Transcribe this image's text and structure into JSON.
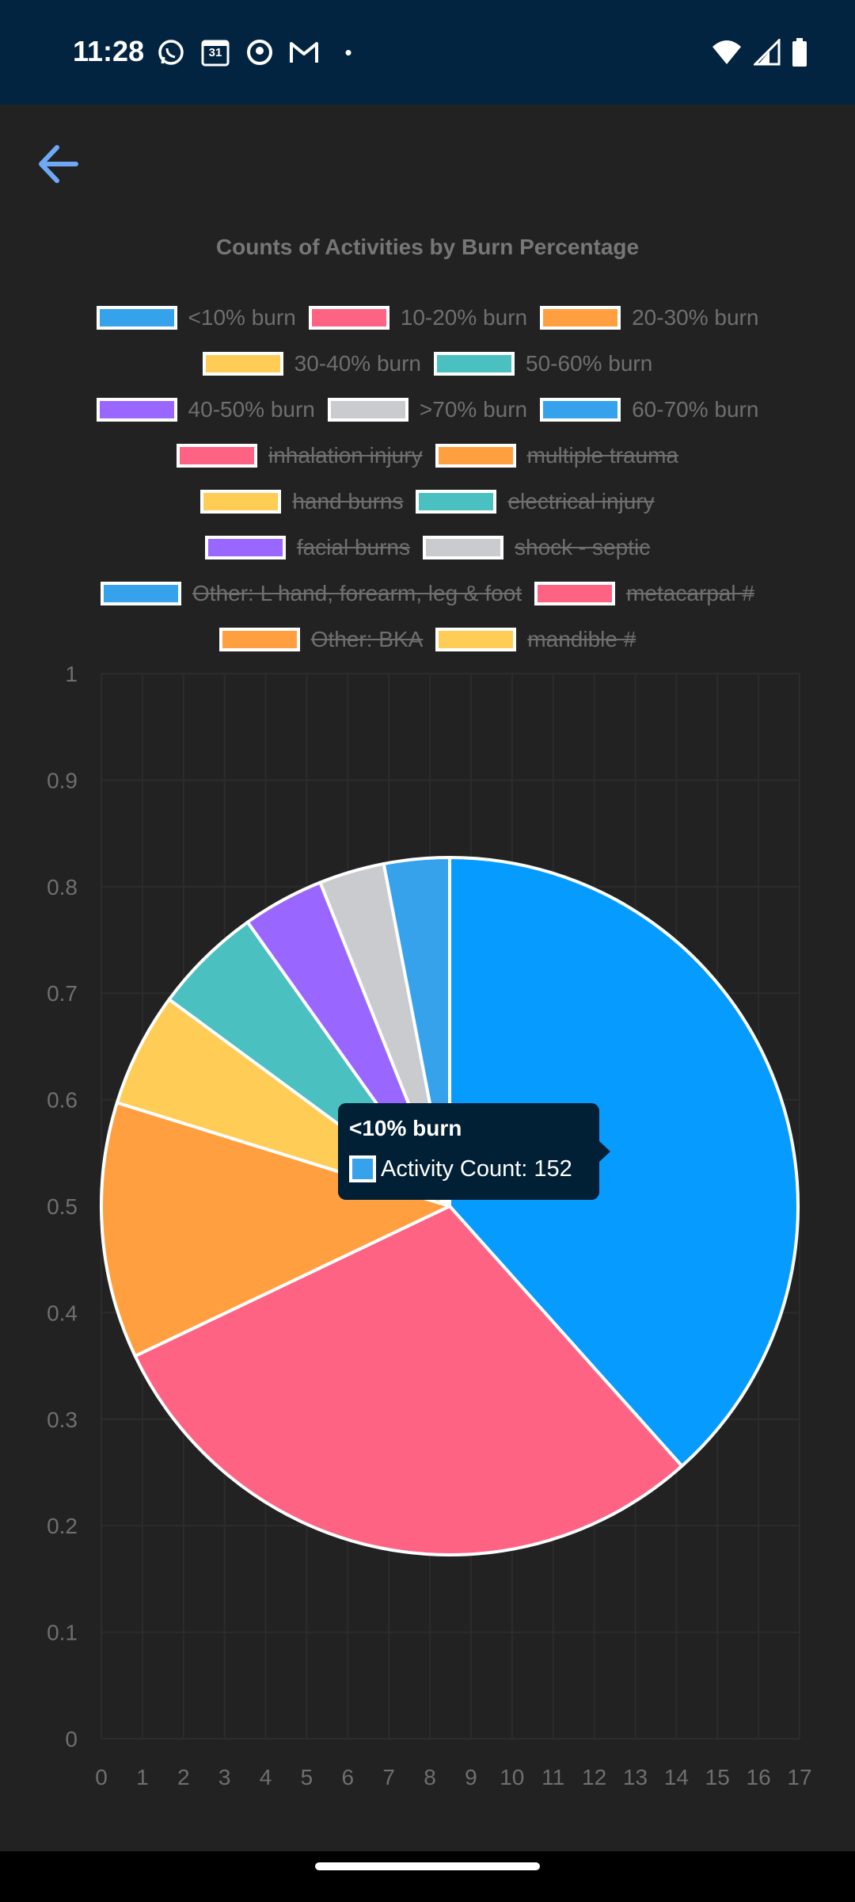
{
  "status_bar": {
    "time": "11:28",
    "calendar_day": "31",
    "dot": "•"
  },
  "colors": {
    "blue": "#36a2eb",
    "pink": "#ff6384",
    "orange": "#ff9f40",
    "yellow": "#ffcd56",
    "teal": "#4bc0c0",
    "purple": "#9966ff",
    "grey": "#c9cbcf",
    "accent": "#6fa8f5",
    "tooltip_bg": "#022035"
  },
  "chart_data": {
    "type": "pie",
    "title": "Counts of Activities by Burn Percentage",
    "legend": [
      {
        "label": "<10% burn",
        "color": "#36a2eb",
        "hidden": false
      },
      {
        "label": "10-20% burn",
        "color": "#ff6384",
        "hidden": false
      },
      {
        "label": "20-30% burn",
        "color": "#ff9f40",
        "hidden": false
      },
      {
        "label": "30-40% burn",
        "color": "#ffcd56",
        "hidden": false
      },
      {
        "label": "50-60% burn",
        "color": "#4bc0c0",
        "hidden": false
      },
      {
        "label": "40-50% burn",
        "color": "#9966ff",
        "hidden": false
      },
      {
        "label": ">70% burn",
        "color": "#c9cbcf",
        "hidden": false
      },
      {
        "label": "60-70% burn",
        "color": "#36a2eb",
        "hidden": false
      },
      {
        "label": "inhalation injury",
        "color": "#ff6384",
        "hidden": true
      },
      {
        "label": "multiple trauma",
        "color": "#ff9f40",
        "hidden": true
      },
      {
        "label": "hand burns",
        "color": "#ffcd56",
        "hidden": true
      },
      {
        "label": "electrical injury",
        "color": "#4bc0c0",
        "hidden": true
      },
      {
        "label": "facial burns",
        "color": "#9966ff",
        "hidden": true
      },
      {
        "label": "shock - septic",
        "color": "#c9cbcf",
        "hidden": true
      },
      {
        "label": "Other: L hand, forearm, leg & foot",
        "color": "#36a2eb",
        "hidden": true
      },
      {
        "label": "metacarpal #",
        "color": "#ff6384",
        "hidden": true
      },
      {
        "label": "Other: BKA",
        "color": "#ff9f40",
        "hidden": true
      },
      {
        "label": "mandible #",
        "color": "#ffcd56",
        "hidden": true
      }
    ],
    "slices": [
      {
        "label": "<10% burn",
        "value": 152,
        "color": "#069bff"
      },
      {
        "label": "10-20% burn",
        "value": 117,
        "color": "#ff6384"
      },
      {
        "label": "20-30% burn",
        "value": 47,
        "color": "#ff9f40"
      },
      {
        "label": "30-40% burn",
        "value": 21,
        "color": "#ffcd56"
      },
      {
        "label": "50-60% burn",
        "value": 20,
        "color": "#4bc0c0"
      },
      {
        "label": "40-50% burn",
        "value": 15,
        "color": "#9966ff"
      },
      {
        "label": ">70% burn",
        "value": 12,
        "color": "#c9cbcf"
      },
      {
        "label": "60-70% burn",
        "value": 12,
        "color": "#36a2eb"
      }
    ],
    "x_ticks": [
      "0",
      "1",
      "2",
      "3",
      "4",
      "5",
      "6",
      "7",
      "8",
      "9",
      "10",
      "11",
      "12",
      "13",
      "14",
      "15",
      "16",
      "17"
    ],
    "y_ticks": [
      "0",
      "0.1",
      "0.2",
      "0.3",
      "0.4",
      "0.5",
      "0.6",
      "0.7",
      "0.8",
      "0.9",
      "1"
    ],
    "xlim": [
      0,
      17
    ],
    "ylim": [
      0,
      1
    ],
    "grid": true,
    "tooltip": {
      "title": "<10% burn",
      "label": "Activity Count: 152"
    }
  }
}
